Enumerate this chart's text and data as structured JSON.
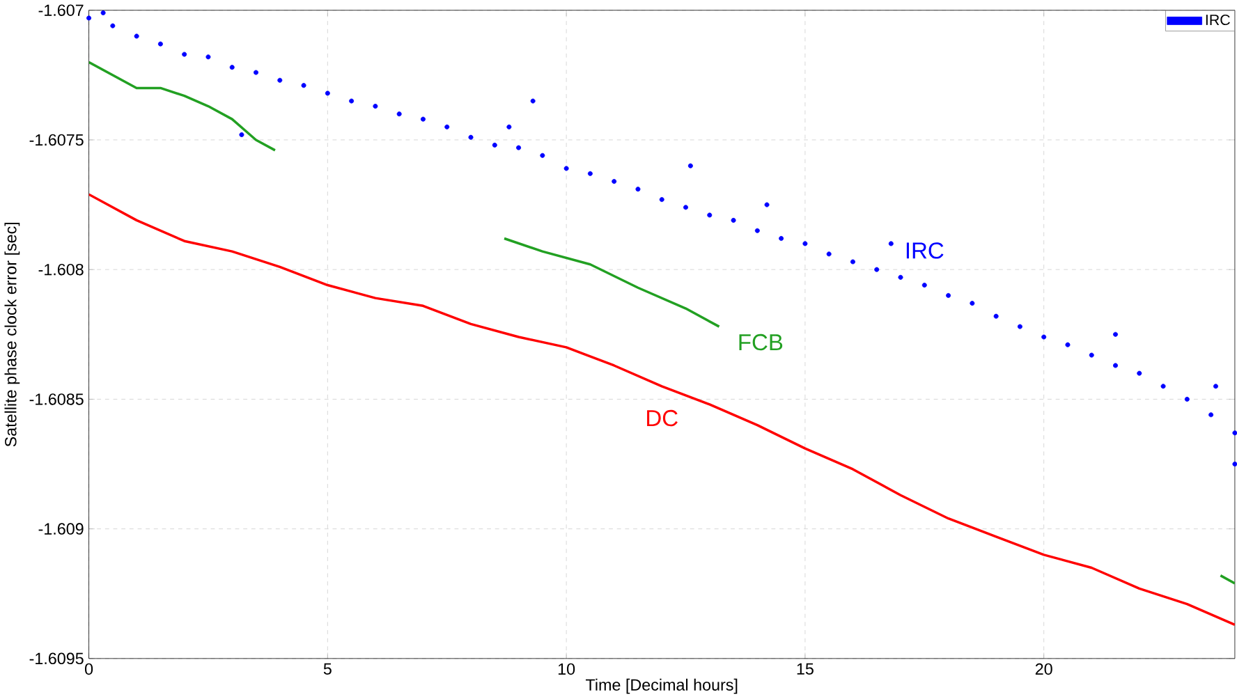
{
  "chart_data": {
    "type": "line",
    "xlabel": "Time [Decimal hours]",
    "ylabel": "Satellite phase clock error [sec]",
    "xlim": [
      0,
      24
    ],
    "ylim": [
      -1.6095,
      -1.607
    ],
    "xticks": [
      0,
      5,
      10,
      15,
      20
    ],
    "yticks": [
      -1.6095,
      -1.609,
      -1.6085,
      -1.608,
      -1.6075,
      -1.607
    ],
    "grid": true,
    "legend": "top right",
    "line_style": "solid",
    "series": [
      {
        "name": "IRC",
        "type": "scatter",
        "marker": "circle",
        "color": "#0000ff",
        "x": [
          0,
          0.5,
          1,
          1.5,
          2,
          2.5,
          3,
          3.5,
          4,
          4.5,
          5,
          5.5,
          6,
          6.5,
          7,
          7.5,
          8,
          8.5,
          9,
          9.5,
          10,
          10.5,
          11,
          11.5,
          12,
          12.5,
          13,
          13.5,
          14,
          14.5,
          15,
          15.5,
          16,
          16.5,
          17,
          17.5,
          18,
          18.5,
          19,
          19.5,
          20,
          20.5,
          21,
          21.5,
          22,
          22.5,
          23,
          23.5,
          24,
          0.3,
          3.2,
          8.8,
          9.3,
          12.6,
          14.2,
          16.8,
          21.5,
          23.6,
          24
        ],
        "values": [
          -1.60703,
          -1.60706,
          -1.6071,
          -1.60713,
          -1.60717,
          -1.60718,
          -1.60722,
          -1.60724,
          -1.60727,
          -1.60729,
          -1.60732,
          -1.60735,
          -1.60737,
          -1.6074,
          -1.60742,
          -1.60745,
          -1.60749,
          -1.60752,
          -1.60753,
          -1.60756,
          -1.60761,
          -1.60763,
          -1.60766,
          -1.60769,
          -1.60773,
          -1.60776,
          -1.60779,
          -1.60781,
          -1.60785,
          -1.60788,
          -1.6079,
          -1.60794,
          -1.60797,
          -1.608,
          -1.60803,
          -1.60806,
          -1.6081,
          -1.60813,
          -1.60818,
          -1.60822,
          -1.60826,
          -1.60829,
          -1.60833,
          -1.60837,
          -1.6084,
          -1.60845,
          -1.6085,
          -1.60856,
          -1.60863,
          -1.60701,
          -1.60748,
          -1.60745,
          -1.60735,
          -1.6076,
          -1.60775,
          -1.6079,
          -1.60825,
          -1.60845,
          -1.60875
        ]
      },
      {
        "name": "FCB",
        "color": "#22a022",
        "x": [
          0,
          0.5,
          1,
          1.5,
          2,
          2.5,
          3,
          3.5,
          3.9,
          6,
          8.7,
          9.5,
          10.5,
          11.5,
          12.5,
          13.2,
          20,
          23.7,
          24
        ],
        "values": [
          -1.6072,
          -1.60725,
          -1.6073,
          -1.6073,
          -1.60733,
          -1.60737,
          -1.60742,
          -1.6075,
          -1.60754,
          null,
          -1.60788,
          -1.60793,
          -1.60798,
          -1.60807,
          -1.60815,
          -1.60822,
          null,
          -1.60918,
          -1.60921
        ]
      },
      {
        "name": "DC",
        "color": "#ff0000",
        "x": [
          0,
          1,
          2,
          3,
          4,
          5,
          6,
          7,
          8,
          9,
          10,
          11,
          12,
          13,
          14,
          15,
          16,
          17,
          18,
          19,
          20,
          21,
          22,
          23,
          24
        ],
        "values": [
          -1.60771,
          -1.60781,
          -1.60789,
          -1.60793,
          -1.60799,
          -1.60806,
          -1.60811,
          -1.60814,
          -1.60821,
          -1.60826,
          -1.6083,
          -1.60837,
          -1.60845,
          -1.60852,
          -1.6086,
          -1.60869,
          -1.60877,
          -1.60887,
          -1.60896,
          -1.60903,
          -1.6091,
          -1.60915,
          -1.60923,
          -1.60929,
          -1.60937
        ]
      }
    ]
  }
}
